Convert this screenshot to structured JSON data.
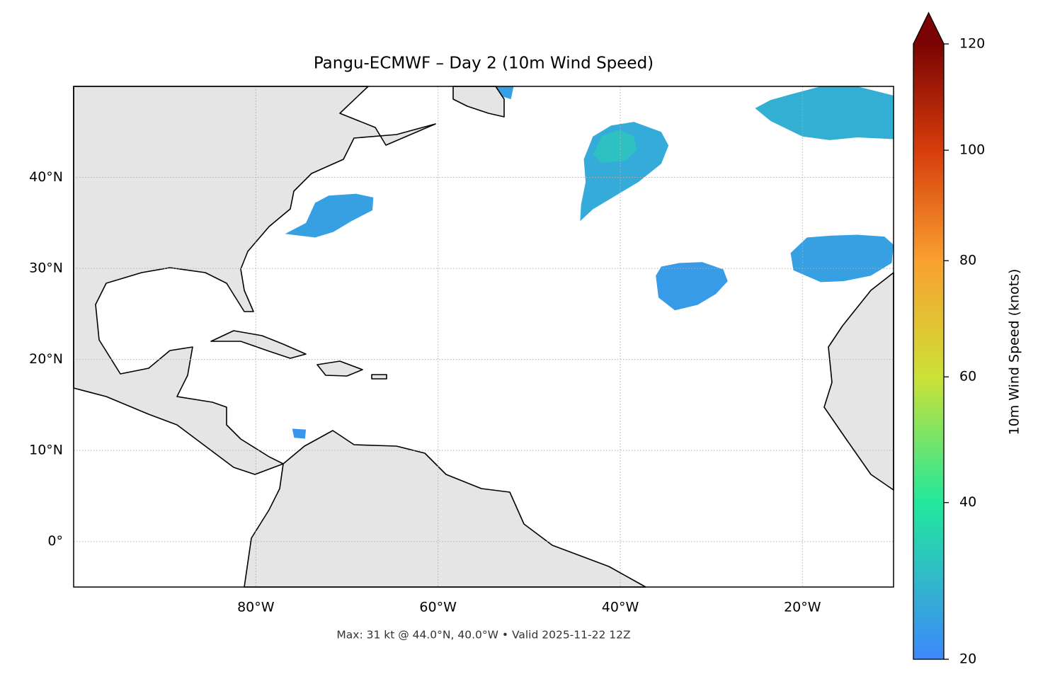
{
  "chart_data": {
    "type": "map",
    "title": "Pangu-ECMWF – Day 2 (10m Wind Speed)",
    "footer": "Max: 31 kt @ 44.0°N, 40.0°W • Valid 2025-11-22 12Z",
    "xlim": [
      -100,
      -10
    ],
    "ylim": [
      -5,
      50
    ],
    "xticks": [
      {
        "value": -80,
        "label": "80°W"
      },
      {
        "value": -60,
        "label": "60°W"
      },
      {
        "value": -40,
        "label": "40°W"
      },
      {
        "value": -20,
        "label": "20°W"
      }
    ],
    "yticks": [
      {
        "value": 0,
        "label": "0°"
      },
      {
        "value": 10,
        "label": "10°N"
      },
      {
        "value": 20,
        "label": "20°N"
      },
      {
        "value": 30,
        "label": "30°N"
      },
      {
        "value": 40,
        "label": "40°N"
      }
    ],
    "grid": true,
    "colorbar": {
      "label": "10m Wind Speed (knots)",
      "lim": [
        20,
        120
      ],
      "ticks": [
        20,
        40,
        60,
        80,
        100,
        120
      ],
      "colors": [
        "#3e88fa",
        "#22e89c",
        "#cde136",
        "#f9a030",
        "#d63d0c",
        "#7a0403"
      ],
      "gamma": 0.85,
      "extend": "max"
    },
    "features": [
      {
        "value": 24,
        "lon": [
          -76.8,
          -74.5,
          -73.5,
          -72,
          -69,
          -67.1,
          -67.2,
          -69.5,
          -71.5,
          -73.5
        ],
        "lat": [
          33.8,
          35,
          37.2,
          38,
          38.2,
          37.8,
          36.4,
          35.2,
          34,
          33.4
        ]
      },
      {
        "value": 26,
        "lon": [
          -44.4,
          -44.3,
          -43.8,
          -44,
          -43,
          -41,
          -38.5,
          -35.5,
          -34.7,
          -35.5,
          -38,
          -40.5,
          -43
        ],
        "lat": [
          35.2,
          37,
          39.5,
          42,
          44.5,
          45.7,
          46.1,
          45,
          43.5,
          41.5,
          39.5,
          38,
          36.5
        ]
      },
      {
        "value": 31,
        "lon": [
          -43,
          -42,
          -40,
          -38.5,
          -38.2,
          -39.5,
          -42
        ],
        "lat": [
          42.5,
          44.6,
          45.2,
          44.5,
          43,
          41.8,
          41.6
        ]
      },
      {
        "value": 23,
        "lon": [
          -36.1,
          -35.5,
          -33.5,
          -31,
          -28.7,
          -28.2,
          -29.5,
          -31.5,
          -34,
          -35.8
        ],
        "lat": [
          29.2,
          30.2,
          30.6,
          30.7,
          29.9,
          28.6,
          27.2,
          26,
          25.4,
          26.8
        ]
      },
      {
        "value": 24,
        "lon": [
          -21.3,
          -19.5,
          -17,
          -14,
          -11,
          -10,
          -10.2,
          -12.5,
          -15.5,
          -18,
          -21
        ],
        "lat": [
          31.7,
          33.4,
          33.6,
          33.7,
          33.5,
          32.6,
          30.6,
          29.2,
          28.6,
          28.5,
          29.8
        ]
      },
      {
        "value": 27,
        "lon": [
          -25.2,
          -23.5,
          -21,
          -18,
          -14,
          -10,
          -10,
          -14,
          -17,
          -20,
          -23.5
        ],
        "lat": [
          47.6,
          48.5,
          49.2,
          50,
          50,
          49,
          44.2,
          44.4,
          44.1,
          44.5,
          46.2
        ]
      },
      {
        "value": 24,
        "lon": [
          -55.2,
          -51.7,
          -52,
          -54
        ],
        "lat": [
          50,
          50,
          48.6,
          49.2
        ]
      },
      {
        "value": 22,
        "lon": [
          -76,
          -74.5,
          -74.6,
          -75.8
        ],
        "lat": [
          12.4,
          12.3,
          11.3,
          11.4
        ]
      }
    ]
  }
}
